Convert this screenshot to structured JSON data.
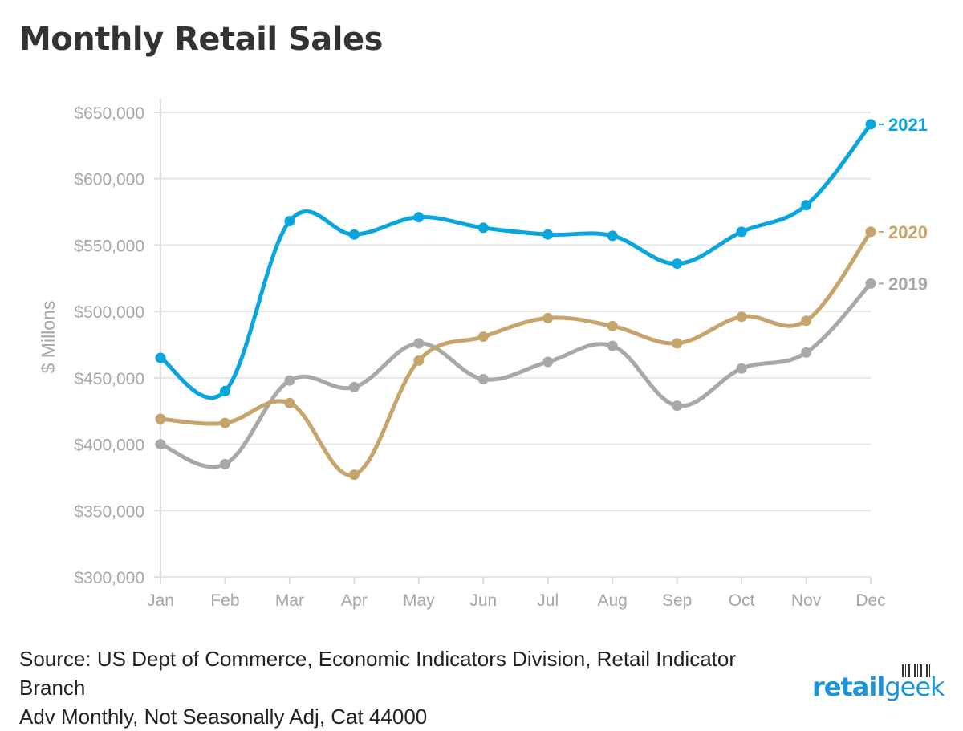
{
  "chart_data": {
    "type": "line",
    "title": "Monthly Retail Sales",
    "ylabel": "$ Millons",
    "xlabel": "",
    "categories": [
      "Jan",
      "Feb",
      "Mar",
      "Apr",
      "May",
      "Jun",
      "Jul",
      "Aug",
      "Sep",
      "Oct",
      "Nov",
      "Dec"
    ],
    "ylim": [
      300000,
      650000
    ],
    "yticks": [
      300000,
      350000,
      400000,
      450000,
      500000,
      550000,
      600000,
      650000
    ],
    "ytick_labels": [
      "$300,000",
      "$350,000",
      "$400,000",
      "$450,000",
      "$500,000",
      "$550,000",
      "$600,000",
      "$650,000"
    ],
    "grid": true,
    "legend": "line-end labels (right)",
    "series": [
      {
        "name": "2021",
        "color": "#0aa5dc",
        "values": [
          465000,
          440000,
          568000,
          558000,
          571000,
          563000,
          558000,
          557000,
          536000,
          560000,
          580000,
          641000
        ]
      },
      {
        "name": "2020",
        "color": "#c6a46c",
        "values": [
          419000,
          416000,
          431000,
          377000,
          463000,
          481000,
          495000,
          489000,
          476000,
          496000,
          493000,
          560000
        ]
      },
      {
        "name": "2019",
        "color": "#a8a8a8",
        "values": [
          400000,
          385000,
          448000,
          443000,
          476000,
          449000,
          462000,
          474000,
          429000,
          457000,
          469000,
          521000
        ]
      }
    ]
  },
  "source_lines": [
    "Source: US Dept of Commerce, Economic Indicators Division, Retail Indicator",
    "Branch",
    "Adv Monthly, Not Seasonally Adj, Cat 44000"
  ],
  "logo": {
    "part1": "retail",
    "part2": "geek"
  },
  "colors": {
    "axis_text": "#a6a6a6",
    "grid": "#e6e6e6",
    "title": "#333333"
  }
}
